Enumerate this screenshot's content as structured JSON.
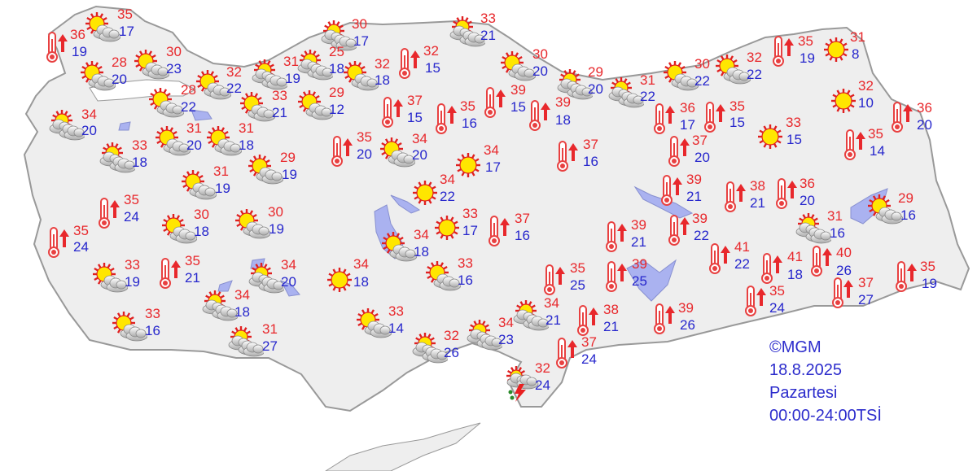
{
  "colors": {
    "land": "#eeeeee",
    "border": "#999999",
    "sea": "#ffffff",
    "lake": "#aab2f0",
    "high_temp": "#e8282c",
    "low_temp": "#2626cc",
    "sun": "#ffe600",
    "sun_rays": "#e02020"
  },
  "info": {
    "copyright": "©MGM",
    "date": "18.8.2025",
    "day": "Pazartesi",
    "period": "00:00-24:00TSİ"
  },
  "stations": [
    {
      "icon": "partly-cloudy-icon",
      "high": "35",
      "low": "17"
    },
    {
      "icon": "hot-thermometer-icon",
      "high": "36",
      "low": "19"
    },
    {
      "icon": "partly-cloudy-icon",
      "high": "28",
      "low": "20"
    },
    {
      "icon": "partly-cloudy-icon",
      "high": "30",
      "low": "23"
    },
    {
      "icon": "partly-cloudy-icon",
      "high": "32",
      "low": "22"
    },
    {
      "icon": "partly-cloudy-icon",
      "high": "28",
      "low": "22"
    },
    {
      "icon": "mostly-cloudy-icon",
      "high": "34",
      "low": "20"
    },
    {
      "icon": "mostly-cloudy-icon",
      "high": "31",
      "low": "19"
    },
    {
      "icon": "partly-cloudy-icon",
      "high": "33",
      "low": "21"
    },
    {
      "icon": "partly-cloudy-icon",
      "high": "31",
      "low": "20"
    },
    {
      "icon": "partly-cloudy-icon",
      "high": "31",
      "low": "18"
    },
    {
      "icon": "mostly-cloudy-icon",
      "high": "33",
      "low": "18"
    },
    {
      "icon": "partly-cloudy-icon",
      "high": "29",
      "low": "19"
    },
    {
      "icon": "partly-cloudy-icon",
      "high": "31",
      "low": "19"
    },
    {
      "icon": "hot-thermometer-icon",
      "high": "35",
      "low": "24"
    },
    {
      "icon": "partly-cloudy-icon",
      "high": "30",
      "low": "18"
    },
    {
      "icon": "partly-cloudy-icon",
      "high": "30",
      "low": "19"
    },
    {
      "icon": "hot-thermometer-icon",
      "high": "35",
      "low": "24"
    },
    {
      "icon": "partly-cloudy-icon",
      "high": "33",
      "low": "19"
    },
    {
      "icon": "hot-thermometer-icon",
      "high": "35",
      "low": "21"
    },
    {
      "icon": "mostly-cloudy-icon",
      "high": "34",
      "low": "20"
    },
    {
      "icon": "mostly-cloudy-icon",
      "high": "34",
      "low": "18"
    },
    {
      "icon": "partly-cloudy-icon",
      "high": "33",
      "low": "16"
    },
    {
      "icon": "mostly-cloudy-icon",
      "high": "31",
      "low": "27"
    },
    {
      "icon": "mostly-cloudy-icon",
      "high": "30",
      "low": "17"
    },
    {
      "icon": "mostly-cloudy-icon",
      "high": "25",
      "low": "18"
    },
    {
      "icon": "partly-cloudy-icon",
      "high": "32",
      "low": "18"
    },
    {
      "icon": "partly-cloudy-icon",
      "high": "29",
      "low": "12"
    },
    {
      "icon": "hot-thermometer-icon",
      "high": "32",
      "low": "15"
    },
    {
      "icon": "mostly-cloudy-icon",
      "high": "33",
      "low": "21"
    },
    {
      "icon": "partly-cloudy-icon",
      "high": "30",
      "low": "20"
    },
    {
      "icon": "mostly-cloudy-icon",
      "high": "29",
      "low": "20"
    },
    {
      "icon": "mostly-cloudy-icon",
      "high": "31",
      "low": "22"
    },
    {
      "icon": "hot-thermometer-icon",
      "high": "37",
      "low": "15"
    },
    {
      "icon": "hot-thermometer-icon",
      "high": "35",
      "low": "16"
    },
    {
      "icon": "hot-thermometer-icon",
      "high": "39",
      "low": "15"
    },
    {
      "icon": "hot-thermometer-icon",
      "high": "39",
      "low": "18"
    },
    {
      "icon": "hot-thermometer-icon",
      "high": "35",
      "low": "20"
    },
    {
      "icon": "partly-cloudy-icon",
      "high": "34",
      "low": "20"
    },
    {
      "icon": "sunny-icon",
      "high": "34",
      "low": "17"
    },
    {
      "icon": "hot-thermometer-icon",
      "high": "37",
      "low": "16"
    },
    {
      "icon": "sunny-icon",
      "high": "34",
      "low": "22"
    },
    {
      "icon": "sunny-icon",
      "high": "33",
      "low": "17"
    },
    {
      "icon": "hot-thermometer-icon",
      "high": "37",
      "low": "16"
    },
    {
      "icon": "partly-cloudy-icon",
      "high": "34",
      "low": "18"
    },
    {
      "icon": "sunny-icon",
      "high": "34",
      "low": "18"
    },
    {
      "icon": "partly-cloudy-icon",
      "high": "33",
      "low": "16"
    },
    {
      "icon": "partly-cloudy-icon",
      "high": "33",
      "low": "14"
    },
    {
      "icon": "mostly-cloudy-icon",
      "high": "32",
      "low": "26"
    },
    {
      "icon": "mostly-cloudy-icon",
      "high": "34",
      "low": "23"
    },
    {
      "icon": "mostly-cloudy-icon",
      "high": "34",
      "low": "21"
    },
    {
      "icon": "thunderstorm-icon",
      "high": "32",
      "low": "24"
    },
    {
      "icon": "hot-thermometer-icon",
      "high": "35",
      "low": "25"
    },
    {
      "icon": "hot-thermometer-icon",
      "high": "38",
      "low": "21"
    },
    {
      "icon": "hot-thermometer-icon",
      "high": "37",
      "low": "24"
    },
    {
      "icon": "hot-thermometer-icon",
      "high": "39",
      "low": "21"
    },
    {
      "icon": "hot-thermometer-icon",
      "high": "39",
      "low": "25"
    },
    {
      "icon": "partly-cloudy-icon",
      "high": "30",
      "low": "22"
    },
    {
      "icon": "partly-cloudy-icon",
      "high": "32",
      "low": "22"
    },
    {
      "icon": "hot-thermometer-icon",
      "high": "35",
      "low": "19"
    },
    {
      "icon": "sunny-icon",
      "high": "31",
      "low": "8"
    },
    {
      "icon": "sunny-icon",
      "high": "32",
      "low": "10"
    },
    {
      "icon": "hot-thermometer-icon",
      "high": "36",
      "low": "20"
    },
    {
      "icon": "hot-thermometer-icon",
      "high": "36",
      "low": "17"
    },
    {
      "icon": "hot-thermometer-icon",
      "high": "35",
      "low": "15"
    },
    {
      "icon": "sunny-icon",
      "high": "33",
      "low": "15"
    },
    {
      "icon": "hot-thermometer-icon",
      "high": "37",
      "low": "20"
    },
    {
      "icon": "hot-thermometer-icon",
      "high": "35",
      "low": "14"
    },
    {
      "icon": "hot-thermometer-icon",
      "high": "39",
      "low": "21"
    },
    {
      "icon": "hot-thermometer-icon",
      "high": "38",
      "low": "21"
    },
    {
      "icon": "hot-thermometer-icon",
      "high": "36",
      "low": "20"
    },
    {
      "icon": "hot-thermometer-icon",
      "high": "39",
      "low": "22"
    },
    {
      "icon": "mostly-cloudy-icon",
      "high": "31",
      "low": "16"
    },
    {
      "icon": "partly-cloudy-icon",
      "high": "29",
      "low": "16"
    },
    {
      "icon": "hot-thermometer-icon",
      "high": "41",
      "low": "22"
    },
    {
      "icon": "hot-thermometer-icon",
      "high": "41",
      "low": "18"
    },
    {
      "icon": "hot-thermometer-icon",
      "high": "40",
      "low": "26"
    },
    {
      "icon": "hot-thermometer-icon",
      "high": "35",
      "low": "24"
    },
    {
      "icon": "hot-thermometer-icon",
      "high": "37",
      "low": "27"
    },
    {
      "icon": "hot-thermometer-icon",
      "high": "35",
      "low": "19"
    },
    {
      "icon": "hot-thermometer-icon",
      "high": "39",
      "low": "26"
    }
  ]
}
